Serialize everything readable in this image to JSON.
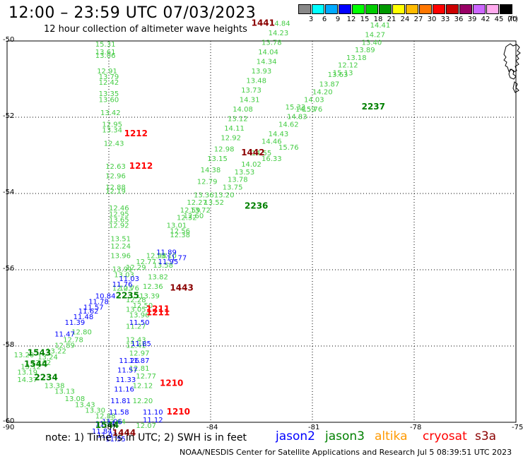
{
  "header": {
    "title": "12:00 – 23:59 UTC 07/03/2023",
    "subtitle": "12 hour collection of altimeter wave heights"
  },
  "colorbar": {
    "ticks": [
      "3",
      "6",
      "9",
      "12",
      "15",
      "18",
      "21",
      "24",
      "27",
      "30",
      "33",
      "36",
      "39",
      "42",
      "45",
      "70"
    ],
    "colors": [
      "#888888",
      "#00ffff",
      "#00aaff",
      "#0000ff",
      "#00ff00",
      "#00cc00",
      "#009900",
      "#ffff00",
      "#ffbb00",
      "#ff7700",
      "#ff0000",
      "#cc0000",
      "#990066",
      "#cc66ff",
      "#ffaaee",
      "#000000"
    ],
    "units": "(ft)"
  },
  "map": {
    "lat_labels": [
      "-50",
      "-52",
      "-54",
      "-56",
      "-58",
      "-60"
    ],
    "lon_labels": [
      "-90",
      "-87",
      "-84",
      "-81",
      "-78",
      "-75"
    ],
    "colors": {
      "jason2": "#0000ff",
      "jason3": "#008000",
      "swh": "#44cc44",
      "cryosat": "#ff0000",
      "s3a": "#8b0000",
      "altika": "#ff9900"
    },
    "swh_labels": [
      {
        "lon": -87.4,
        "lat": -50.0,
        "text": "15.31",
        "c": "swh"
      },
      {
        "lon": -87.4,
        "lat": -50.2,
        "text": "13.61",
        "c": "swh"
      },
      {
        "lon": -87.4,
        "lat": -50.3,
        "text": "13.06",
        "c": "swh"
      },
      {
        "lon": -87.35,
        "lat": -50.7,
        "text": "12.91",
        "c": "swh"
      },
      {
        "lon": -87.3,
        "lat": -50.85,
        "text": "13.79",
        "c": "swh"
      },
      {
        "lon": -87.3,
        "lat": -51.0,
        "text": "12.42",
        "c": "swh"
      },
      {
        "lon": -87.3,
        "lat": -51.3,
        "text": "13.35",
        "c": "swh"
      },
      {
        "lon": -87.3,
        "lat": -51.45,
        "text": "13.60",
        "c": "swh"
      },
      {
        "lon": -87.25,
        "lat": -51.8,
        "text": "13.42",
        "c": "swh"
      },
      {
        "lon": -87.2,
        "lat": -52.1,
        "text": "12.95",
        "c": "swh"
      },
      {
        "lon": -87.2,
        "lat": -52.25,
        "text": "13.34",
        "c": "swh"
      },
      {
        "lon": -87.15,
        "lat": -52.6,
        "text": "12.43",
        "c": "swh"
      },
      {
        "lon": -87.1,
        "lat": -53.2,
        "text": "12.63",
        "c": "swh"
      },
      {
        "lon": -87.1,
        "lat": -53.45,
        "text": "12.96",
        "c": "swh"
      },
      {
        "lon": -87.1,
        "lat": -53.75,
        "text": "12.88",
        "c": "swh"
      },
      {
        "lon": -87.1,
        "lat": -53.85,
        "text": "12.19",
        "c": "swh"
      },
      {
        "lon": -87.0,
        "lat": -54.3,
        "text": "12.46",
        "c": "swh"
      },
      {
        "lon": -87.0,
        "lat": -54.45,
        "text": "12.95",
        "c": "swh"
      },
      {
        "lon": -87.0,
        "lat": -54.6,
        "text": "13.65",
        "c": "swh"
      },
      {
        "lon": -87.0,
        "lat": -54.75,
        "text": "12.92",
        "c": "swh"
      },
      {
        "lon": -86.95,
        "lat": -55.1,
        "text": "13.51",
        "c": "swh"
      },
      {
        "lon": -86.95,
        "lat": -55.3,
        "text": "12.24",
        "c": "swh"
      },
      {
        "lon": -86.95,
        "lat": -55.55,
        "text": "13.96",
        "c": "swh"
      },
      {
        "lon": -86.9,
        "lat": -55.9,
        "text": "13.91",
        "c": "swh"
      },
      {
        "lon": -86.85,
        "lat": -56.05,
        "text": "13.03",
        "c": "swh"
      },
      {
        "lon": -86.9,
        "lat": -56.4,
        "text": "12.03",
        "c": "swh"
      },
      {
        "lon": -86.7,
        "lat": -56.4,
        "text": "12.76",
        "c": "swh"
      },
      {
        "lon": -86.5,
        "lat": -56.7,
        "text": "12.28",
        "c": "swh"
      },
      {
        "lon": -86.5,
        "lat": -56.95,
        "text": "13.05",
        "c": "swh"
      },
      {
        "lon": -86.4,
        "lat": -57.1,
        "text": "13.96",
        "c": "swh"
      },
      {
        "lon": -86.5,
        "lat": -57.4,
        "text": "11.27",
        "c": "swh"
      },
      {
        "lon": -86.5,
        "lat": -57.75,
        "text": "12.43",
        "c": "swh"
      },
      {
        "lon": -86.5,
        "lat": -57.9,
        "text": "12.41",
        "c": "swh"
      },
      {
        "lon": -86.4,
        "lat": -58.1,
        "text": "12.97",
        "c": "swh"
      },
      {
        "lon": -86.4,
        "lat": -58.5,
        "text": "12.81",
        "c": "swh"
      },
      {
        "lon": -86.2,
        "lat": -58.7,
        "text": "12.77",
        "c": "swh"
      },
      {
        "lon": -86.3,
        "lat": -58.95,
        "text": "12.12",
        "c": "swh"
      },
      {
        "lon": -86.3,
        "lat": -59.35,
        "text": "12.20",
        "c": "swh"
      },
      {
        "lon": -86.2,
        "lat": -60.0,
        "text": "12.07",
        "c": "swh"
      },
      {
        "lon": -86.3,
        "lat": -56.85,
        "text": "12.50",
        "c": "swh"
      },
      {
        "lon": -86.1,
        "lat": -56.6,
        "text": "13.39",
        "c": "swh"
      },
      {
        "lon": -86.0,
        "lat": -56.35,
        "text": "12.36",
        "c": "swh"
      },
      {
        "lon": -85.85,
        "lat": -56.1,
        "text": "13.82",
        "c": "swh"
      },
      {
        "lon": -85.7,
        "lat": -55.8,
        "text": "13.58",
        "c": "swh"
      },
      {
        "lon": -85.6,
        "lat": -55.55,
        "text": "13.10",
        "c": "swh"
      },
      {
        "lon": -85.9,
        "lat": -55.55,
        "text": "12.98",
        "c": "swh"
      },
      {
        "lon": -86.2,
        "lat": -55.7,
        "text": "12.77",
        "c": "swh"
      },
      {
        "lon": -86.5,
        "lat": -55.85,
        "text": "12.29",
        "c": "swh"
      },
      {
        "lon": -85.2,
        "lat": -55.0,
        "text": "12.38",
        "c": "swh"
      },
      {
        "lon": -85.2,
        "lat": -54.9,
        "text": "12.56",
        "c": "swh"
      },
      {
        "lon": -85.3,
        "lat": -54.75,
        "text": "13.01",
        "c": "swh"
      },
      {
        "lon": -85.0,
        "lat": -54.55,
        "text": "12.32",
        "c": "swh"
      },
      {
        "lon": -84.8,
        "lat": -54.5,
        "text": "12.60",
        "c": "swh"
      },
      {
        "lon": -84.9,
        "lat": -54.35,
        "text": "12.59",
        "c": "swh"
      },
      {
        "lon": -84.6,
        "lat": -54.35,
        "text": "13.72",
        "c": "swh"
      },
      {
        "lon": -84.7,
        "lat": -54.15,
        "text": "12.27",
        "c": "swh"
      },
      {
        "lon": -84.2,
        "lat": -54.15,
        "text": "13.52",
        "c": "swh"
      },
      {
        "lon": -83.9,
        "lat": -53.95,
        "text": "13.20",
        "c": "swh"
      },
      {
        "lon": -84.5,
        "lat": -53.95,
        "text": "13.36",
        "c": "swh"
      },
      {
        "lon": -83.65,
        "lat": -53.75,
        "text": "13.75",
        "c": "swh"
      },
      {
        "lon": -84.4,
        "lat": -53.6,
        "text": "12.79",
        "c": "swh"
      },
      {
        "lon": -83.5,
        "lat": -53.55,
        "text": "13.78",
        "c": "swh"
      },
      {
        "lon": -84.3,
        "lat": -53.3,
        "text": "14.38",
        "c": "swh"
      },
      {
        "lon": -84.1,
        "lat": -53.0,
        "text": "13.15",
        "c": "swh"
      },
      {
        "lon": -83.9,
        "lat": -52.75,
        "text": "12.98",
        "c": "swh"
      },
      {
        "lon": -83.7,
        "lat": -52.45,
        "text": "12.92",
        "c": "swh"
      },
      {
        "lon": -83.6,
        "lat": -52.2,
        "text": "14.11",
        "c": "swh"
      },
      {
        "lon": -83.5,
        "lat": -51.95,
        "text": "13.12",
        "c": "swh"
      },
      {
        "lon": -83.35,
        "lat": -51.7,
        "text": "14.08",
        "c": "swh"
      },
      {
        "lon": -83.15,
        "lat": -51.45,
        "text": "14.31",
        "c": "swh"
      },
      {
        "lon": -83.1,
        "lat": -51.2,
        "text": "13.73",
        "c": "swh"
      },
      {
        "lon": -82.95,
        "lat": -50.95,
        "text": "13.48",
        "c": "swh"
      },
      {
        "lon": -82.8,
        "lat": -50.7,
        "text": "13.93",
        "c": "swh"
      },
      {
        "lon": -82.65,
        "lat": -50.45,
        "text": "14.34",
        "c": "swh"
      },
      {
        "lon": -82.6,
        "lat": -50.2,
        "text": "14.04",
        "c": "swh"
      },
      {
        "lon": -82.5,
        "lat": -49.95,
        "text": "13.78",
        "c": "swh"
      },
      {
        "lon": -82.3,
        "lat": -49.7,
        "text": "14.23",
        "c": "swh"
      },
      {
        "lon": -82.25,
        "lat": -49.45,
        "text": "14.84",
        "c": "swh"
      },
      {
        "lon": -83.3,
        "lat": -53.35,
        "text": "13.53",
        "c": "swh"
      },
      {
        "lon": -83.1,
        "lat": -53.15,
        "text": "14.02",
        "c": "swh"
      },
      {
        "lon": -82.8,
        "lat": -52.85,
        "text": "14.55",
        "c": "swh"
      },
      {
        "lon": -82.5,
        "lat": -52.55,
        "text": "14.46",
        "c": "swh"
      },
      {
        "lon": -82.3,
        "lat": -52.35,
        "text": "14.43",
        "c": "swh"
      },
      {
        "lon": -82.0,
        "lat": -52.1,
        "text": "14.62",
        "c": "swh"
      },
      {
        "lon": -81.75,
        "lat": -51.9,
        "text": "14.83",
        "c": "swh"
      },
      {
        "lon": -81.5,
        "lat": -51.7,
        "text": "14.59",
        "c": "swh"
      },
      {
        "lon": -81.25,
        "lat": -51.45,
        "text": "14.03",
        "c": "swh"
      },
      {
        "lon": -81.0,
        "lat": -51.25,
        "text": "14.20",
        "c": "swh"
      },
      {
        "lon": -80.8,
        "lat": -51.05,
        "text": "13.87",
        "c": "swh"
      },
      {
        "lon": -80.55,
        "lat": -50.8,
        "text": "13.63",
        "c": "swh"
      },
      {
        "lon": -80.25,
        "lat": -50.55,
        "text": "12.12",
        "c": "swh"
      },
      {
        "lon": -80.0,
        "lat": -50.35,
        "text": "13.18",
        "c": "swh"
      },
      {
        "lon": -79.75,
        "lat": -50.15,
        "text": "13.89",
        "c": "swh"
      },
      {
        "lon": -79.55,
        "lat": -49.95,
        "text": "13.40",
        "c": "swh"
      },
      {
        "lon": -79.45,
        "lat": -49.75,
        "text": "14.27",
        "c": "swh"
      },
      {
        "lon": -79.3,
        "lat": -49.5,
        "text": "14.41",
        "c": "swh"
      },
      {
        "lon": -81.8,
        "lat": -51.65,
        "text": "15.33",
        "c": "swh"
      },
      {
        "lon": -80.4,
        "lat": -50.75,
        "text": "15.13",
        "c": "swh"
      },
      {
        "lon": -81.3,
        "lat": -51.7,
        "text": "15.76",
        "c": "swh"
      },
      {
        "lon": -82.0,
        "lat": -52.7,
        "text": "15.76",
        "c": "swh"
      },
      {
        "lon": -82.5,
        "lat": -53.0,
        "text": "16.33",
        "c": "swh"
      },
      {
        "lon": -88.1,
        "lat": -57.55,
        "text": "12.80",
        "c": "swh"
      },
      {
        "lon": -88.35,
        "lat": -57.75,
        "text": "12.78",
        "c": "swh"
      },
      {
        "lon": -88.6,
        "lat": -57.9,
        "text": "12.89",
        "c": "swh"
      },
      {
        "lon": -88.85,
        "lat": -58.05,
        "text": "13.22",
        "c": "swh"
      },
      {
        "lon": -89.1,
        "lat": -58.2,
        "text": "13.24",
        "c": "swh"
      },
      {
        "lon": -89.3,
        "lat": -58.35,
        "text": "13.62",
        "c": "swh"
      },
      {
        "lon": -89.6,
        "lat": -58.45,
        "text": "13.12",
        "c": "swh"
      },
      {
        "lon": -89.8,
        "lat": -58.15,
        "text": "13.20",
        "c": "swh"
      },
      {
        "lon": -89.7,
        "lat": -58.6,
        "text": "13.19",
        "c": "swh"
      },
      {
        "lon": -89.7,
        "lat": -58.8,
        "text": "14.37",
        "c": "swh"
      },
      {
        "lon": -88.9,
        "lat": -58.95,
        "text": "13.38",
        "c": "swh"
      },
      {
        "lon": -88.6,
        "lat": -59.1,
        "text": "13.13",
        "c": "swh"
      },
      {
        "lon": -88.3,
        "lat": -59.3,
        "text": "13.08",
        "c": "swh"
      },
      {
        "lon": -88.0,
        "lat": -59.45,
        "text": "13.43",
        "c": "swh"
      },
      {
        "lon": -87.7,
        "lat": -59.6,
        "text": "13.30",
        "c": "swh"
      },
      {
        "lon": -87.4,
        "lat": -59.75,
        "text": "12.88",
        "c": "swh"
      },
      {
        "lon": -87.1,
        "lat": -59.9,
        "text": "12.64",
        "c": "swh"
      }
    ],
    "jason2_labels": [
      {
        "lon": -85.6,
        "lat": -55.45,
        "text": "11.89"
      },
      {
        "lon": -85.3,
        "lat": -55.6,
        "text": "11.77"
      },
      {
        "lon": -85.55,
        "lat": -55.7,
        "text": "11.95"
      },
      {
        "lon": -86.7,
        "lat": -56.15,
        "text": "11.03"
      },
      {
        "lon": -86.9,
        "lat": -56.3,
        "text": "11.76"
      },
      {
        "lon": -87.4,
        "lat": -56.6,
        "text": "10.84"
      },
      {
        "lon": -87.6,
        "lat": -56.75,
        "text": "11.78"
      },
      {
        "lon": -87.75,
        "lat": -56.9,
        "text": "11.57"
      },
      {
        "lon": -87.9,
        "lat": -57.0,
        "text": "11.62"
      },
      {
        "lon": -88.05,
        "lat": -57.15,
        "text": "11.48"
      },
      {
        "lon": -88.3,
        "lat": -57.3,
        "text": "11.39"
      },
      {
        "lon": -88.6,
        "lat": -57.6,
        "text": "11.47"
      },
      {
        "lon": -86.4,
        "lat": -57.3,
        "text": "11.50"
      },
      {
        "lon": -86.35,
        "lat": -57.85,
        "text": "11.85"
      },
      {
        "lon": -86.7,
        "lat": -58.3,
        "text": "11.26"
      },
      {
        "lon": -86.4,
        "lat": -58.3,
        "text": "11.87"
      },
      {
        "lon": -86.75,
        "lat": -58.55,
        "text": "11.57"
      },
      {
        "lon": -86.8,
        "lat": -58.8,
        "text": "11.33"
      },
      {
        "lon": -86.85,
        "lat": -59.05,
        "text": "11.16"
      },
      {
        "lon": -86.95,
        "lat": -59.35,
        "text": "11.81"
      },
      {
        "lon": -87.0,
        "lat": -59.65,
        "text": "11.58"
      },
      {
        "lon": -87.2,
        "lat": -59.9,
        "text": "11.96"
      },
      {
        "lon": -87.4,
        "lat": -59.95,
        "text": "11.71"
      },
      {
        "lon": -87.5,
        "lat": -60.15,
        "text": "11.84"
      },
      {
        "lon": -87.35,
        "lat": -60.25,
        "text": "11.93"
      },
      {
        "lon": -87.1,
        "lat": -60.35,
        "text": "11.55"
      },
      {
        "lon": -86.0,
        "lat": -59.65,
        "text": "11.10"
      },
      {
        "lon": -86.0,
        "lat": -59.85,
        "text": "11.12"
      }
    ],
    "pass_labels": [
      {
        "lon": -82.8,
        "lat": -49.45,
        "text": "1441",
        "c": "s3a"
      },
      {
        "lon": -79.55,
        "lat": -51.65,
        "text": "2237",
        "c": "jason3"
      },
      {
        "lon": -86.55,
        "lat": -52.35,
        "text": "1212",
        "c": "cryosat"
      },
      {
        "lon": -83.1,
        "lat": -52.85,
        "text": "1442",
        "c": "s3a"
      },
      {
        "lon": -86.4,
        "lat": -53.2,
        "text": "1212",
        "c": "cryosat"
      },
      {
        "lon": -83.0,
        "lat": -54.25,
        "text": "2236",
        "c": "jason3"
      },
      {
        "lon": -85.2,
        "lat": -56.4,
        "text": "1443",
        "c": "s3a"
      },
      {
        "lon": -86.8,
        "lat": -56.6,
        "text": "2235",
        "c": "jason3"
      },
      {
        "lon": -85.9,
        "lat": -56.95,
        "text": "1211",
        "c": "cryosat"
      },
      {
        "lon": -85.9,
        "lat": -57.05,
        "text": "1211",
        "c": "cryosat"
      },
      {
        "lon": -89.4,
        "lat": -58.1,
        "text": "1543",
        "c": "jason3"
      },
      {
        "lon": -89.5,
        "lat": -58.4,
        "text": "1544",
        "c": "jason3"
      },
      {
        "lon": -89.2,
        "lat": -58.75,
        "text": "2234",
        "c": "jason3"
      },
      {
        "lon": -85.5,
        "lat": -58.9,
        "text": "1210",
        "c": "cryosat"
      },
      {
        "lon": -85.3,
        "lat": -59.65,
        "text": "1210",
        "c": "cryosat"
      },
      {
        "lon": -87.4,
        "lat": -60.0,
        "text": "1544",
        "c": "jason3"
      },
      {
        "lon": -86.9,
        "lat": -60.2,
        "text": "1444",
        "c": "s3a"
      }
    ]
  },
  "footer": {
    "note": "note: 1) Time is in UTC; 2) SWH is in feet",
    "legend": [
      {
        "name": "jason2",
        "color": "#0000ff"
      },
      {
        "name": "jason3",
        "color": "#008000"
      },
      {
        "name": "altika",
        "color": "#ff9900"
      },
      {
        "name": "cryosat",
        "color": "#ff0000"
      },
      {
        "name": "s3a",
        "color": "#8b0000"
      }
    ],
    "credit": "NOAA/NESDIS Center for Satellite Applications and Research    Jul  5 08:39:51 UTC 2023"
  }
}
